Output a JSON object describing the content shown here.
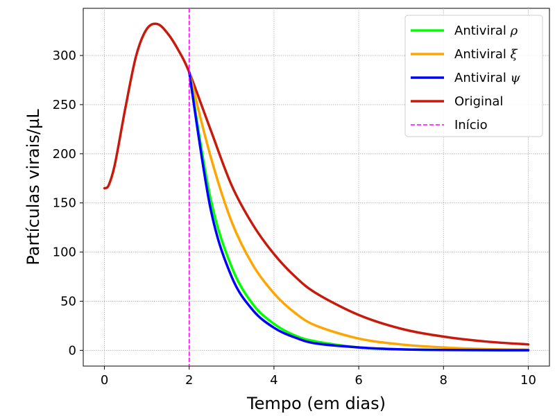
{
  "chart_data": {
    "type": "line",
    "xlabel": "Tempo (em dias)",
    "ylabel": "Partículas virais/µL",
    "xlim": [
      -0.5,
      10.5
    ],
    "ylim": [
      -16,
      348
    ],
    "xticks": [
      0,
      2,
      4,
      6,
      8,
      10
    ],
    "yticks": [
      0,
      50,
      100,
      150,
      200,
      250,
      300
    ],
    "grid": true,
    "legend_position": "top-right",
    "start_marker": {
      "x": 2,
      "label": "Início",
      "color": "#ff00ff",
      "style": "dashed"
    },
    "series": [
      {
        "name": "Antiviral ρ",
        "label_text": "Antiviral ",
        "label_symbol": "ρ",
        "color": "#00ff00",
        "x": [
          2,
          2.5,
          3,
          3.5,
          4,
          4.5,
          5,
          6,
          7,
          8,
          9,
          10
        ],
        "y": [
          283,
          155,
          85,
          47,
          27,
          15,
          9,
          3,
          1,
          0.4,
          0.2,
          0.1
        ]
      },
      {
        "name": "Antiviral ξ",
        "label_text": "Antiviral ",
        "label_symbol": "ξ",
        "color": "#ffa500",
        "x": [
          2,
          2.5,
          3,
          3.5,
          4,
          4.5,
          5,
          6,
          7,
          8,
          9,
          10
        ],
        "y": [
          283,
          198,
          131,
          87,
          58,
          38,
          25,
          12,
          6,
          3,
          1.3,
          0.6
        ]
      },
      {
        "name": "Antiviral ψ",
        "label_text": "Antiviral ",
        "label_symbol": "ψ",
        "color": "#0000ff",
        "x": [
          2,
          2.5,
          3,
          3.5,
          4,
          4.5,
          5,
          6,
          7,
          8,
          9,
          10
        ],
        "y": [
          283,
          145,
          75,
          41,
          23,
          13,
          7,
          3,
          1,
          0.4,
          0.2,
          0.1
        ]
      },
      {
        "name": "Original",
        "label_text": "Original",
        "label_symbol": "",
        "color": "#c81a0c",
        "x": [
          0,
          0.1,
          0.25,
          0.5,
          0.75,
          1,
          1.25,
          1.5,
          1.75,
          2,
          2.5,
          3,
          3.5,
          4,
          4.5,
          5,
          6,
          7,
          8,
          9,
          10
        ],
        "y": [
          165,
          168,
          190,
          248,
          300,
          327,
          332,
          322,
          305,
          283,
          225,
          168,
          128,
          98,
          75,
          58,
          36,
          22,
          14,
          9,
          6
        ]
      }
    ]
  }
}
